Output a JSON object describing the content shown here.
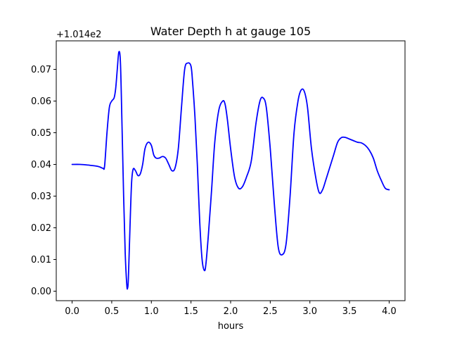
{
  "chart_data": {
    "type": "line",
    "title": "Water Depth h at gauge 105",
    "xlabel": "hours",
    "ylabel": "",
    "offset_text": "+1.014e2",
    "xlim": [
      -0.2,
      4.2
    ],
    "ylim": [
      -0.003,
      0.079
    ],
    "xticks": [
      0.0,
      0.5,
      1.0,
      1.5,
      2.0,
      2.5,
      3.0,
      3.5,
      4.0
    ],
    "xtick_labels": [
      "0.0",
      "0.5",
      "1.0",
      "1.5",
      "2.0",
      "2.5",
      "3.0",
      "3.5",
      "4.0"
    ],
    "yticks": [
      0.0,
      0.01,
      0.02,
      0.03,
      0.04,
      0.05,
      0.06,
      0.07
    ],
    "ytick_labels": [
      "0.00",
      "0.01",
      "0.02",
      "0.03",
      "0.04",
      "0.05",
      "0.06",
      "0.07"
    ],
    "grid": false,
    "line_color": "#0000ff",
    "series": [
      {
        "x": [
          0.0,
          0.1,
          0.2,
          0.3,
          0.35,
          0.39,
          0.41,
          0.44,
          0.47,
          0.5,
          0.53,
          0.55,
          0.57,
          0.59,
          0.61,
          0.63,
          0.65,
          0.67,
          0.69,
          0.7,
          0.71,
          0.73,
          0.75,
          0.77,
          0.8,
          0.83,
          0.86,
          0.89,
          0.92,
          0.96,
          1.0,
          1.03,
          1.06,
          1.1,
          1.14,
          1.18,
          1.22,
          1.26,
          1.3,
          1.34,
          1.38,
          1.42,
          1.46,
          1.5,
          1.52,
          1.55,
          1.58,
          1.61,
          1.64,
          1.67,
          1.69,
          1.72,
          1.76,
          1.8,
          1.85,
          1.9,
          1.93,
          1.96,
          2.0,
          2.05,
          2.1,
          2.15,
          2.2,
          2.26,
          2.32,
          2.37,
          2.41,
          2.45,
          2.5,
          2.55,
          2.6,
          2.65,
          2.7,
          2.75,
          2.8,
          2.85,
          2.89,
          2.93,
          2.97,
          3.02,
          3.08,
          3.12,
          3.16,
          3.2,
          3.25,
          3.3,
          3.35,
          3.4,
          3.45,
          3.5,
          3.55,
          3.6,
          3.65,
          3.7,
          3.75,
          3.8,
          3.85,
          3.9,
          3.95,
          4.0
        ],
        "y": [
          0.04,
          0.04,
          0.0398,
          0.0395,
          0.0392,
          0.0388,
          0.0395,
          0.05,
          0.058,
          0.06,
          0.061,
          0.064,
          0.07,
          0.0755,
          0.072,
          0.052,
          0.03,
          0.012,
          0.002,
          0.001,
          0.004,
          0.02,
          0.034,
          0.0385,
          0.038,
          0.0365,
          0.037,
          0.04,
          0.045,
          0.047,
          0.046,
          0.043,
          0.042,
          0.042,
          0.0425,
          0.042,
          0.04,
          0.038,
          0.039,
          0.045,
          0.058,
          0.07,
          0.072,
          0.071,
          0.066,
          0.055,
          0.04,
          0.022,
          0.01,
          0.0065,
          0.009,
          0.018,
          0.032,
          0.047,
          0.057,
          0.06,
          0.059,
          0.054,
          0.045,
          0.036,
          0.0325,
          0.033,
          0.036,
          0.041,
          0.053,
          0.06,
          0.061,
          0.058,
          0.045,
          0.028,
          0.014,
          0.0115,
          0.015,
          0.03,
          0.05,
          0.06,
          0.0635,
          0.063,
          0.058,
          0.045,
          0.035,
          0.031,
          0.032,
          0.035,
          0.039,
          0.043,
          0.047,
          0.0485,
          0.0485,
          0.048,
          0.0475,
          0.047,
          0.0468,
          0.046,
          0.0445,
          0.042,
          0.038,
          0.035,
          0.0325,
          0.032
        ]
      }
    ]
  }
}
